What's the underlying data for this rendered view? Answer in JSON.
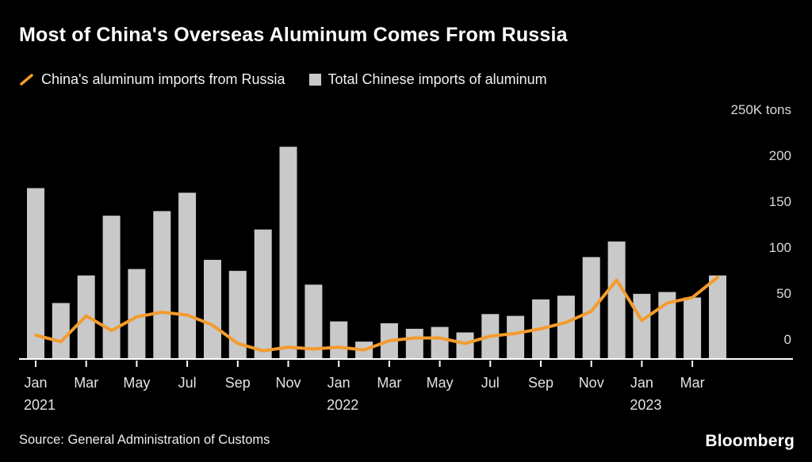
{
  "title": "Most of China's Overseas Aluminum Comes From Russia",
  "legend": [
    {
      "label": "China's aluminum imports from Russia",
      "marker": "line",
      "color": "#f39b2d"
    },
    {
      "label": "Total Chinese imports of aluminum",
      "marker": "square",
      "color": "#c9c9c9"
    }
  ],
  "source": "Source: General Administration of Customs",
  "logo_text": "Bloomberg",
  "chart_data": {
    "type": "bar+line",
    "title": "Most of China's Overseas Aluminum Comes From Russia",
    "unit": "K tons",
    "ylim": [
      0,
      250
    ],
    "grid": false,
    "legend_position": "top-left",
    "x": [
      "Jan 2021",
      "Feb 2021",
      "Mar 2021",
      "Apr 2021",
      "May 2021",
      "Jun 2021",
      "Jul 2021",
      "Aug 2021",
      "Sep 2021",
      "Oct 2021",
      "Nov 2021",
      "Dec 2021",
      "Jan 2022",
      "Feb 2022",
      "Mar 2022",
      "Apr 2022",
      "May 2022",
      "Jun 2022",
      "Jul 2022",
      "Aug 2022",
      "Sep 2022",
      "Oct 2022",
      "Nov 2022",
      "Dec 2022",
      "Jan 2023",
      "Feb 2023",
      "Mar 2023",
      "Apr 2023"
    ],
    "series": [
      {
        "name": "Total Chinese imports of aluminum",
        "type": "bar",
        "color": "#c9c9c9",
        "values": [
          185,
          60,
          90,
          155,
          97,
          160,
          180,
          107,
          95,
          140,
          230,
          80,
          40,
          18,
          38,
          32,
          34,
          28,
          48,
          46,
          64,
          68,
          110,
          127,
          70,
          72,
          66,
          90
        ]
      },
      {
        "name": "China's aluminum imports from Russia",
        "type": "line",
        "color": "#f39b2d",
        "values": [
          25,
          18,
          46,
          30,
          45,
          50,
          47,
          36,
          16,
          8,
          12,
          10,
          12,
          9,
          19,
          22,
          22,
          16,
          24,
          27,
          32,
          39,
          51,
          85,
          41,
          60,
          66,
          88
        ]
      }
    ],
    "y_ticks": [
      {
        "value": 0,
        "label": "0"
      },
      {
        "value": 50,
        "label": "50"
      },
      {
        "value": 100,
        "label": "100"
      },
      {
        "value": 150,
        "label": "150"
      },
      {
        "value": 200,
        "label": "200"
      },
      {
        "value": 250,
        "label": "250K tons"
      }
    ],
    "x_ticks": [
      {
        "index": 0,
        "month": "Jan",
        "year": "2021"
      },
      {
        "index": 2,
        "month": "Mar"
      },
      {
        "index": 4,
        "month": "May"
      },
      {
        "index": 6,
        "month": "Jul"
      },
      {
        "index": 8,
        "month": "Sep"
      },
      {
        "index": 10,
        "month": "Nov"
      },
      {
        "index": 12,
        "month": "Jan",
        "year": "2022"
      },
      {
        "index": 14,
        "month": "Mar"
      },
      {
        "index": 16,
        "month": "May"
      },
      {
        "index": 18,
        "month": "Jul"
      },
      {
        "index": 20,
        "month": "Sep"
      },
      {
        "index": 22,
        "month": "Nov"
      },
      {
        "index": 24,
        "month": "Jan",
        "year": "2023"
      },
      {
        "index": 26,
        "month": "Mar"
      }
    ]
  }
}
